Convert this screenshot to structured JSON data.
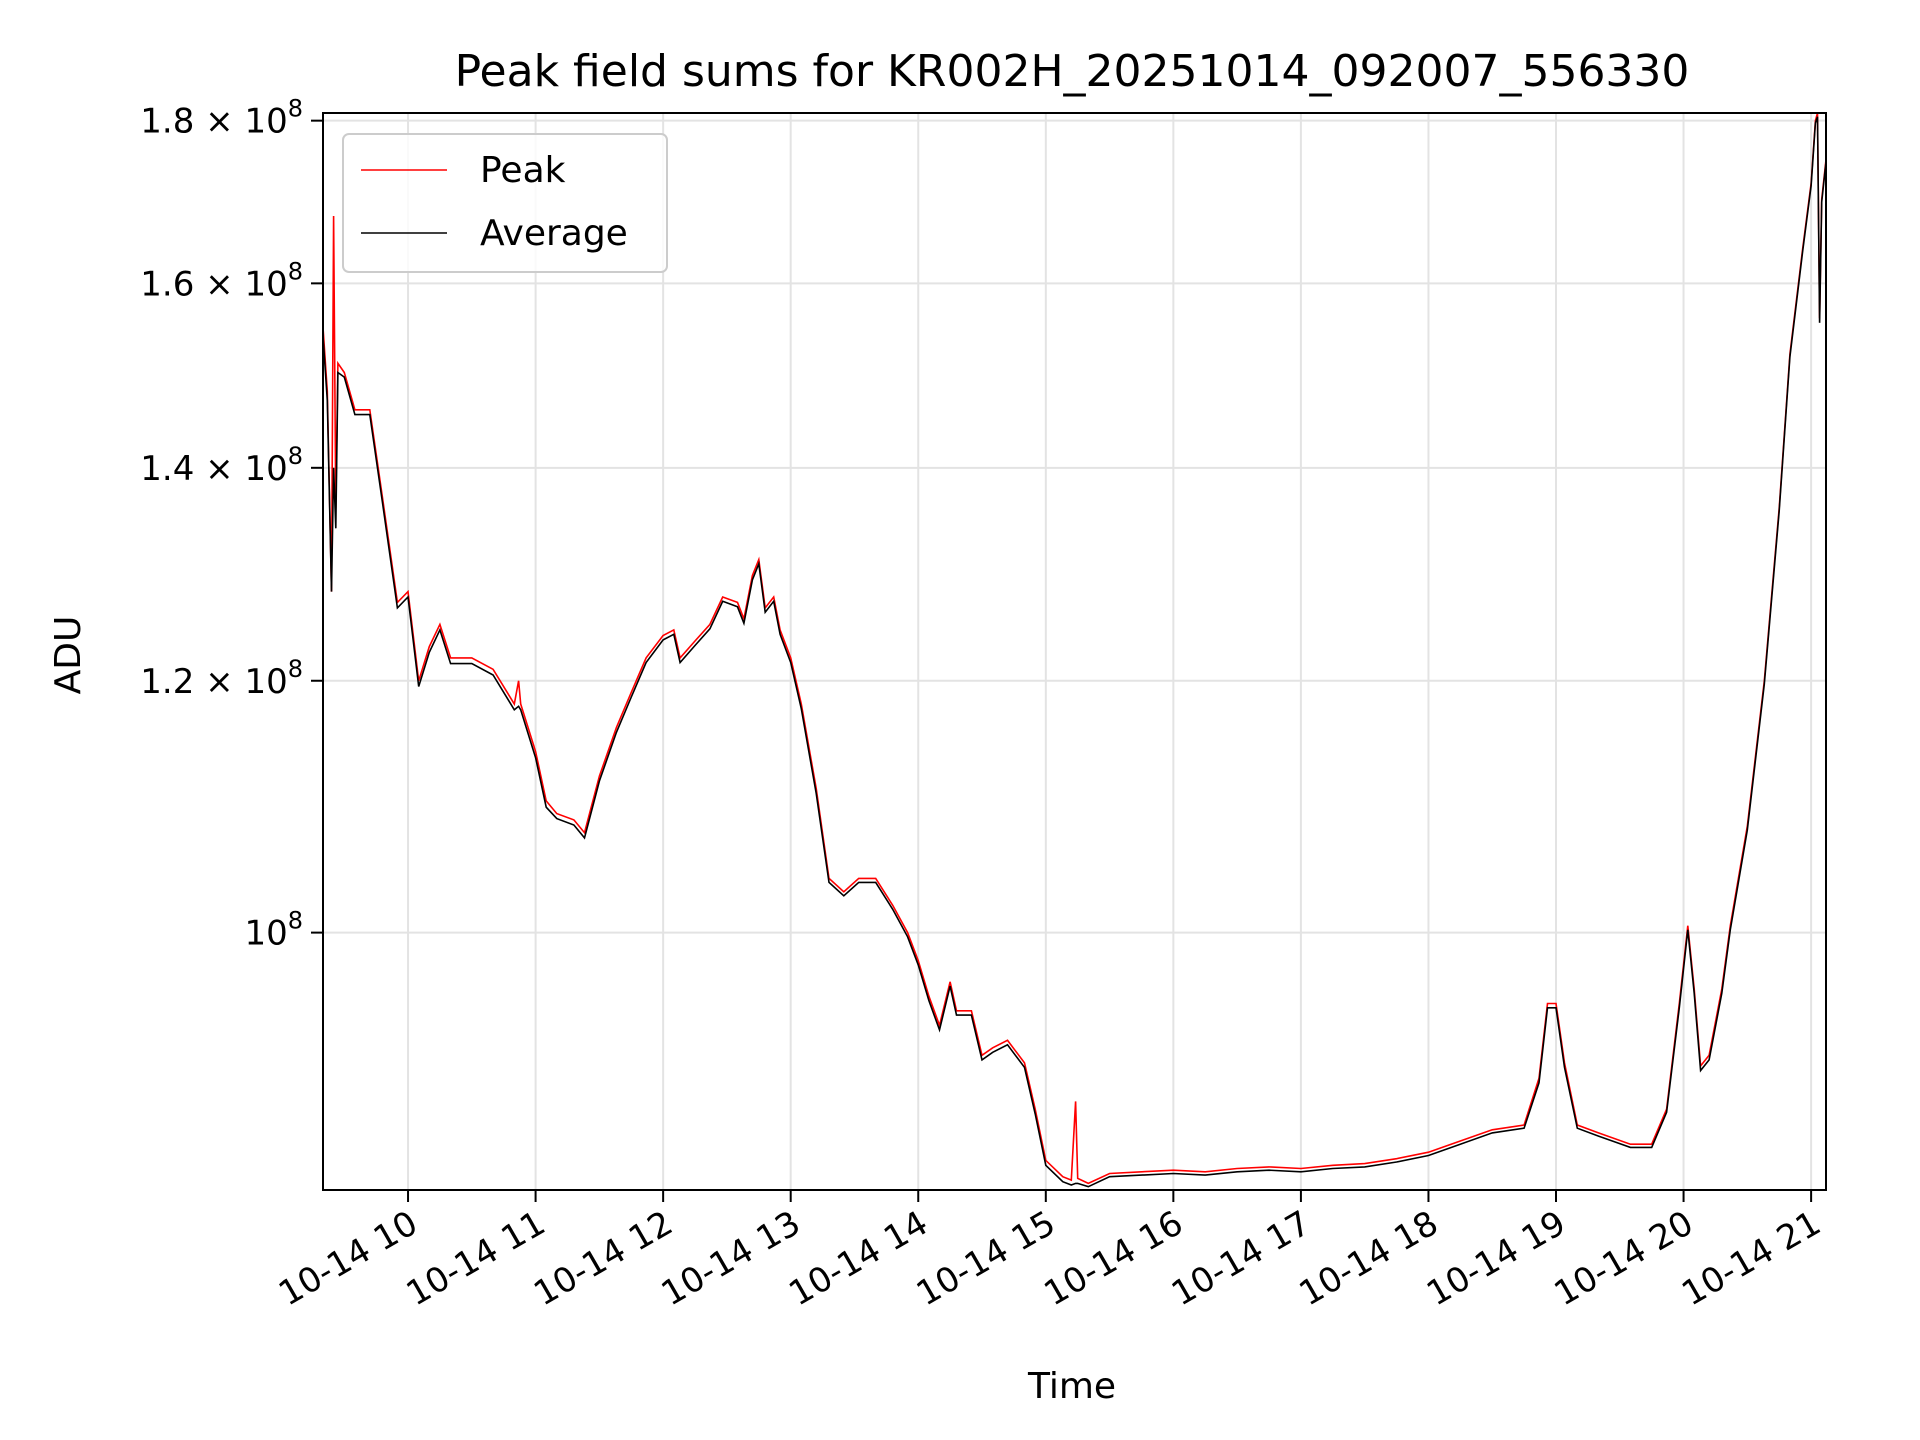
{
  "chart_data": {
    "type": "line",
    "title": "Peak field sums for KR002H_20251014_092007_556330",
    "xlabel": "Time",
    "ylabel": "ADU",
    "yscale": "log",
    "xlim": [
      "2025-10-14 09:20",
      "2025-10-14 21:07"
    ],
    "ylim": [
      83000000,
      181000000
    ],
    "grid": true,
    "legend_position": "upper-left",
    "x_ticks": [
      {
        "value": "2025-10-14 10:00",
        "label": "10-14 10"
      },
      {
        "value": "2025-10-14 11:00",
        "label": "10-14 11"
      },
      {
        "value": "2025-10-14 12:00",
        "label": "10-14 12"
      },
      {
        "value": "2025-10-14 13:00",
        "label": "10-14 13"
      },
      {
        "value": "2025-10-14 14:00",
        "label": "10-14 14"
      },
      {
        "value": "2025-10-14 15:00",
        "label": "10-14 15"
      },
      {
        "value": "2025-10-14 16:00",
        "label": "10-14 16"
      },
      {
        "value": "2025-10-14 17:00",
        "label": "10-14 17"
      },
      {
        "value": "2025-10-14 18:00",
        "label": "10-14 18"
      },
      {
        "value": "2025-10-14 19:00",
        "label": "10-14 19"
      },
      {
        "value": "2025-10-14 20:00",
        "label": "10-14 20"
      },
      {
        "value": "2025-10-14 21:00",
        "label": "10-14 21"
      }
    ],
    "y_ticks": [
      {
        "value": 100000000,
        "base": "10",
        "exp": "8"
      },
      {
        "value": 120000000,
        "mantissa": "1.2",
        "base": "10",
        "exp": "8"
      },
      {
        "value": 140000000,
        "mantissa": "1.4",
        "base": "10",
        "exp": "8"
      },
      {
        "value": 160000000,
        "mantissa": "1.6",
        "base": "10",
        "exp": "8"
      },
      {
        "value": 180000000,
        "mantissa": "1.8",
        "base": "10",
        "exp": "8"
      }
    ],
    "series": [
      {
        "name": "Peak",
        "color": "#ff0000",
        "points": [
          [
            "2025-10-14 09:20",
            155000000
          ],
          [
            "2025-10-14 09:22",
            148000000
          ],
          [
            "2025-10-14 09:24",
            128000000
          ],
          [
            "2025-10-14 09:25",
            168000000
          ],
          [
            "2025-10-14 09:26",
            136000000
          ],
          [
            "2025-10-14 09:27",
            151000000
          ],
          [
            "2025-10-14 09:30",
            150000000
          ],
          [
            "2025-10-14 09:35",
            146000000
          ],
          [
            "2025-10-14 09:42",
            146000000
          ],
          [
            "2025-10-14 09:48",
            137000000
          ],
          [
            "2025-10-14 09:55",
            127000000
          ],
          [
            "2025-10-14 10:00",
            128000000
          ],
          [
            "2025-10-14 10:05",
            120000000
          ],
          [
            "2025-10-14 10:10",
            123000000
          ],
          [
            "2025-10-14 10:15",
            125000000
          ],
          [
            "2025-10-14 10:20",
            122000000
          ],
          [
            "2025-10-14 10:30",
            122000000
          ],
          [
            "2025-10-14 10:40",
            121000000
          ],
          [
            "2025-10-14 10:50",
            118000000
          ],
          [
            "2025-10-14 10:52",
            120000000
          ],
          [
            "2025-10-14 10:53",
            118000000
          ],
          [
            "2025-10-14 11:00",
            114000000
          ],
          [
            "2025-10-14 11:05",
            110000000
          ],
          [
            "2025-10-14 11:10",
            109000000
          ],
          [
            "2025-10-14 11:18",
            108500000
          ],
          [
            "2025-10-14 11:23",
            107500000
          ],
          [
            "2025-10-14 11:30",
            112000000
          ],
          [
            "2025-10-14 11:38",
            116000000
          ],
          [
            "2025-10-14 11:45",
            119000000
          ],
          [
            "2025-10-14 11:52",
            122000000
          ],
          [
            "2025-10-14 12:00",
            124000000
          ],
          [
            "2025-10-14 12:05",
            124500000
          ],
          [
            "2025-10-14 12:08",
            122000000
          ],
          [
            "2025-10-14 12:15",
            123500000
          ],
          [
            "2025-10-14 12:22",
            125000000
          ],
          [
            "2025-10-14 12:28",
            127500000
          ],
          [
            "2025-10-14 12:35",
            127000000
          ],
          [
            "2025-10-14 12:38",
            125500000
          ],
          [
            "2025-10-14 12:42",
            129500000
          ],
          [
            "2025-10-14 12:45",
            131000000
          ],
          [
            "2025-10-14 12:48",
            126500000
          ],
          [
            "2025-10-14 12:52",
            127500000
          ],
          [
            "2025-10-14 12:55",
            124500000
          ],
          [
            "2025-10-14 13:00",
            122000000
          ],
          [
            "2025-10-14 13:05",
            118000000
          ],
          [
            "2025-10-14 13:12",
            111000000
          ],
          [
            "2025-10-14 13:18",
            104000000
          ],
          [
            "2025-10-14 13:25",
            103000000
          ],
          [
            "2025-10-14 13:32",
            104000000
          ],
          [
            "2025-10-14 13:40",
            104000000
          ],
          [
            "2025-10-14 13:48",
            102000000
          ],
          [
            "2025-10-14 13:55",
            100000000
          ],
          [
            "2025-10-14 14:00",
            98000000
          ],
          [
            "2025-10-14 14:05",
            95500000
          ],
          [
            "2025-10-14 14:10",
            93500000
          ],
          [
            "2025-10-14 14:15",
            96500000
          ],
          [
            "2025-10-14 14:18",
            94500000
          ],
          [
            "2025-10-14 14:25",
            94500000
          ],
          [
            "2025-10-14 14:30",
            91500000
          ],
          [
            "2025-10-14 14:35",
            92000000
          ],
          [
            "2025-10-14 14:42",
            92500000
          ],
          [
            "2025-10-14 14:50",
            91000000
          ],
          [
            "2025-10-14 14:55",
            88000000
          ],
          [
            "2025-10-14 15:00",
            84800000
          ],
          [
            "2025-10-14 15:08",
            83800000
          ],
          [
            "2025-10-14 15:12",
            83600000
          ],
          [
            "2025-10-14 15:14",
            88500000
          ],
          [
            "2025-10-14 15:15",
            83700000
          ],
          [
            "2025-10-14 15:20",
            83400000
          ],
          [
            "2025-10-14 15:30",
            84000000
          ],
          [
            "2025-10-14 15:45",
            84100000
          ],
          [
            "2025-10-14 16:00",
            84200000
          ],
          [
            "2025-10-14 16:15",
            84100000
          ],
          [
            "2025-10-14 16:30",
            84300000
          ],
          [
            "2025-10-14 16:45",
            84400000
          ],
          [
            "2025-10-14 17:00",
            84300000
          ],
          [
            "2025-10-14 17:15",
            84500000
          ],
          [
            "2025-10-14 17:30",
            84600000
          ],
          [
            "2025-10-14 17:45",
            84900000
          ],
          [
            "2025-10-14 18:00",
            85300000
          ],
          [
            "2025-10-14 18:15",
            86000000
          ],
          [
            "2025-10-14 18:30",
            86700000
          ],
          [
            "2025-10-14 18:45",
            87000000
          ],
          [
            "2025-10-14 18:52",
            90000000
          ],
          [
            "2025-10-14 18:56",
            95000000
          ],
          [
            "2025-10-14 19:00",
            95000000
          ],
          [
            "2025-10-14 19:04",
            91000000
          ],
          [
            "2025-10-14 19:10",
            87000000
          ],
          [
            "2025-10-14 19:20",
            86500000
          ],
          [
            "2025-10-14 19:35",
            85800000
          ],
          [
            "2025-10-14 19:45",
            85800000
          ],
          [
            "2025-10-14 19:52",
            88000000
          ],
          [
            "2025-10-14 19:58",
            95000000
          ],
          [
            "2025-10-14 20:02",
            100500000
          ],
          [
            "2025-10-14 20:05",
            96000000
          ],
          [
            "2025-10-14 20:08",
            90800000
          ],
          [
            "2025-10-14 20:12",
            91500000
          ],
          [
            "2025-10-14 20:18",
            96000000
          ],
          [
            "2025-10-14 20:22",
            100500000
          ],
          [
            "2025-10-14 20:30",
            108000000
          ],
          [
            "2025-10-14 20:38",
            120000000
          ],
          [
            "2025-10-14 20:45",
            136000000
          ],
          [
            "2025-10-14 20:50",
            152000000
          ],
          [
            "2025-10-14 20:56",
            164000000
          ],
          [
            "2025-10-14 21:00",
            172000000
          ],
          [
            "2025-10-14 21:02",
            180000000
          ],
          [
            "2025-10-14 21:03",
            181000000
          ],
          [
            "2025-10-14 21:04",
            156000000
          ],
          [
            "2025-10-14 21:05",
            170000000
          ],
          [
            "2025-10-14 21:07",
            175000000
          ]
        ]
      },
      {
        "name": "Average",
        "color": "#000000",
        "points": [
          [
            "2025-10-14 09:20",
            154000000
          ],
          [
            "2025-10-14 09:22",
            147000000
          ],
          [
            "2025-10-14 09:24",
            128000000
          ],
          [
            "2025-10-14 09:25",
            140000000
          ],
          [
            "2025-10-14 09:26",
            134000000
          ],
          [
            "2025-10-14 09:27",
            150000000
          ],
          [
            "2025-10-14 09:30",
            149500000
          ],
          [
            "2025-10-14 09:35",
            145500000
          ],
          [
            "2025-10-14 09:42",
            145500000
          ],
          [
            "2025-10-14 09:48",
            136500000
          ],
          [
            "2025-10-14 09:55",
            126500000
          ],
          [
            "2025-10-14 10:00",
            127500000
          ],
          [
            "2025-10-14 10:05",
            119500000
          ],
          [
            "2025-10-14 10:10",
            122500000
          ],
          [
            "2025-10-14 10:15",
            124500000
          ],
          [
            "2025-10-14 10:20",
            121500000
          ],
          [
            "2025-10-14 10:30",
            121500000
          ],
          [
            "2025-10-14 10:40",
            120500000
          ],
          [
            "2025-10-14 10:50",
            117500000
          ],
          [
            "2025-10-14 10:52",
            117800000
          ],
          [
            "2025-10-14 10:53",
            117500000
          ],
          [
            "2025-10-14 11:00",
            113500000
          ],
          [
            "2025-10-14 11:05",
            109500000
          ],
          [
            "2025-10-14 11:10",
            108600000
          ],
          [
            "2025-10-14 11:18",
            108100000
          ],
          [
            "2025-10-14 11:23",
            107100000
          ],
          [
            "2025-10-14 11:30",
            111600000
          ],
          [
            "2025-10-14 11:38",
            115600000
          ],
          [
            "2025-10-14 11:45",
            118600000
          ],
          [
            "2025-10-14 11:52",
            121600000
          ],
          [
            "2025-10-14 12:00",
            123600000
          ],
          [
            "2025-10-14 12:05",
            124100000
          ],
          [
            "2025-10-14 12:08",
            121600000
          ],
          [
            "2025-10-14 12:15",
            123100000
          ],
          [
            "2025-10-14 12:22",
            124600000
          ],
          [
            "2025-10-14 12:28",
            127100000
          ],
          [
            "2025-10-14 12:35",
            126600000
          ],
          [
            "2025-10-14 12:38",
            125100000
          ],
          [
            "2025-10-14 12:42",
            129100000
          ],
          [
            "2025-10-14 12:45",
            130600000
          ],
          [
            "2025-10-14 12:48",
            126100000
          ],
          [
            "2025-10-14 12:52",
            127100000
          ],
          [
            "2025-10-14 12:55",
            124100000
          ],
          [
            "2025-10-14 13:00",
            121600000
          ],
          [
            "2025-10-14 13:05",
            117600000
          ],
          [
            "2025-10-14 13:12",
            110600000
          ],
          [
            "2025-10-14 13:18",
            103700000
          ],
          [
            "2025-10-14 13:25",
            102700000
          ],
          [
            "2025-10-14 13:32",
            103700000
          ],
          [
            "2025-10-14 13:40",
            103700000
          ],
          [
            "2025-10-14 13:48",
            101700000
          ],
          [
            "2025-10-14 13:55",
            99700000
          ],
          [
            "2025-10-14 14:00",
            97700000
          ],
          [
            "2025-10-14 14:05",
            95200000
          ],
          [
            "2025-10-14 14:10",
            93200000
          ],
          [
            "2025-10-14 14:15",
            96200000
          ],
          [
            "2025-10-14 14:18",
            94200000
          ],
          [
            "2025-10-14 14:25",
            94200000
          ],
          [
            "2025-10-14 14:30",
            91200000
          ],
          [
            "2025-10-14 14:35",
            91700000
          ],
          [
            "2025-10-14 14:42",
            92200000
          ],
          [
            "2025-10-14 14:50",
            90700000
          ],
          [
            "2025-10-14 14:55",
            87700000
          ],
          [
            "2025-10-14 15:00",
            84500000
          ],
          [
            "2025-10-14 15:08",
            83500000
          ],
          [
            "2025-10-14 15:12",
            83300000
          ],
          [
            "2025-10-14 15:14",
            83400000
          ],
          [
            "2025-10-14 15:15",
            83400000
          ],
          [
            "2025-10-14 15:20",
            83200000
          ],
          [
            "2025-10-14 15:30",
            83800000
          ],
          [
            "2025-10-14 15:45",
            83900000
          ],
          [
            "2025-10-14 16:00",
            84000000
          ],
          [
            "2025-10-14 16:15",
            83900000
          ],
          [
            "2025-10-14 16:30",
            84100000
          ],
          [
            "2025-10-14 16:45",
            84200000
          ],
          [
            "2025-10-14 17:00",
            84100000
          ],
          [
            "2025-10-14 17:15",
            84300000
          ],
          [
            "2025-10-14 17:30",
            84400000
          ],
          [
            "2025-10-14 17:45",
            84700000
          ],
          [
            "2025-10-14 18:00",
            85100000
          ],
          [
            "2025-10-14 18:15",
            85800000
          ],
          [
            "2025-10-14 18:30",
            86500000
          ],
          [
            "2025-10-14 18:45",
            86800000
          ],
          [
            "2025-10-14 18:52",
            89700000
          ],
          [
            "2025-10-14 18:56",
            94700000
          ],
          [
            "2025-10-14 19:00",
            94700000
          ],
          [
            "2025-10-14 19:04",
            90700000
          ],
          [
            "2025-10-14 19:10",
            86800000
          ],
          [
            "2025-10-14 19:20",
            86300000
          ],
          [
            "2025-10-14 19:35",
            85600000
          ],
          [
            "2025-10-14 19:45",
            85600000
          ],
          [
            "2025-10-14 19:52",
            87800000
          ],
          [
            "2025-10-14 19:58",
            94700000
          ],
          [
            "2025-10-14 20:02",
            100200000
          ],
          [
            "2025-10-14 20:05",
            95700000
          ],
          [
            "2025-10-14 20:08",
            90500000
          ],
          [
            "2025-10-14 20:12",
            91200000
          ],
          [
            "2025-10-14 20:18",
            95700000
          ],
          [
            "2025-10-14 20:22",
            100200000
          ],
          [
            "2025-10-14 20:30",
            107700000
          ],
          [
            "2025-10-14 20:38",
            119700000
          ],
          [
            "2025-10-14 20:45",
            135700000
          ],
          [
            "2025-10-14 20:50",
            151700000
          ],
          [
            "2025-10-14 20:56",
            163700000
          ],
          [
            "2025-10-14 21:00",
            171700000
          ],
          [
            "2025-10-14 21:02",
            179700000
          ],
          [
            "2025-10-14 21:03",
            180500000
          ],
          [
            "2025-10-14 21:04",
            155500000
          ],
          [
            "2025-10-14 21:05",
            169700000
          ],
          [
            "2025-10-14 21:07",
            174700000
          ]
        ]
      }
    ]
  }
}
